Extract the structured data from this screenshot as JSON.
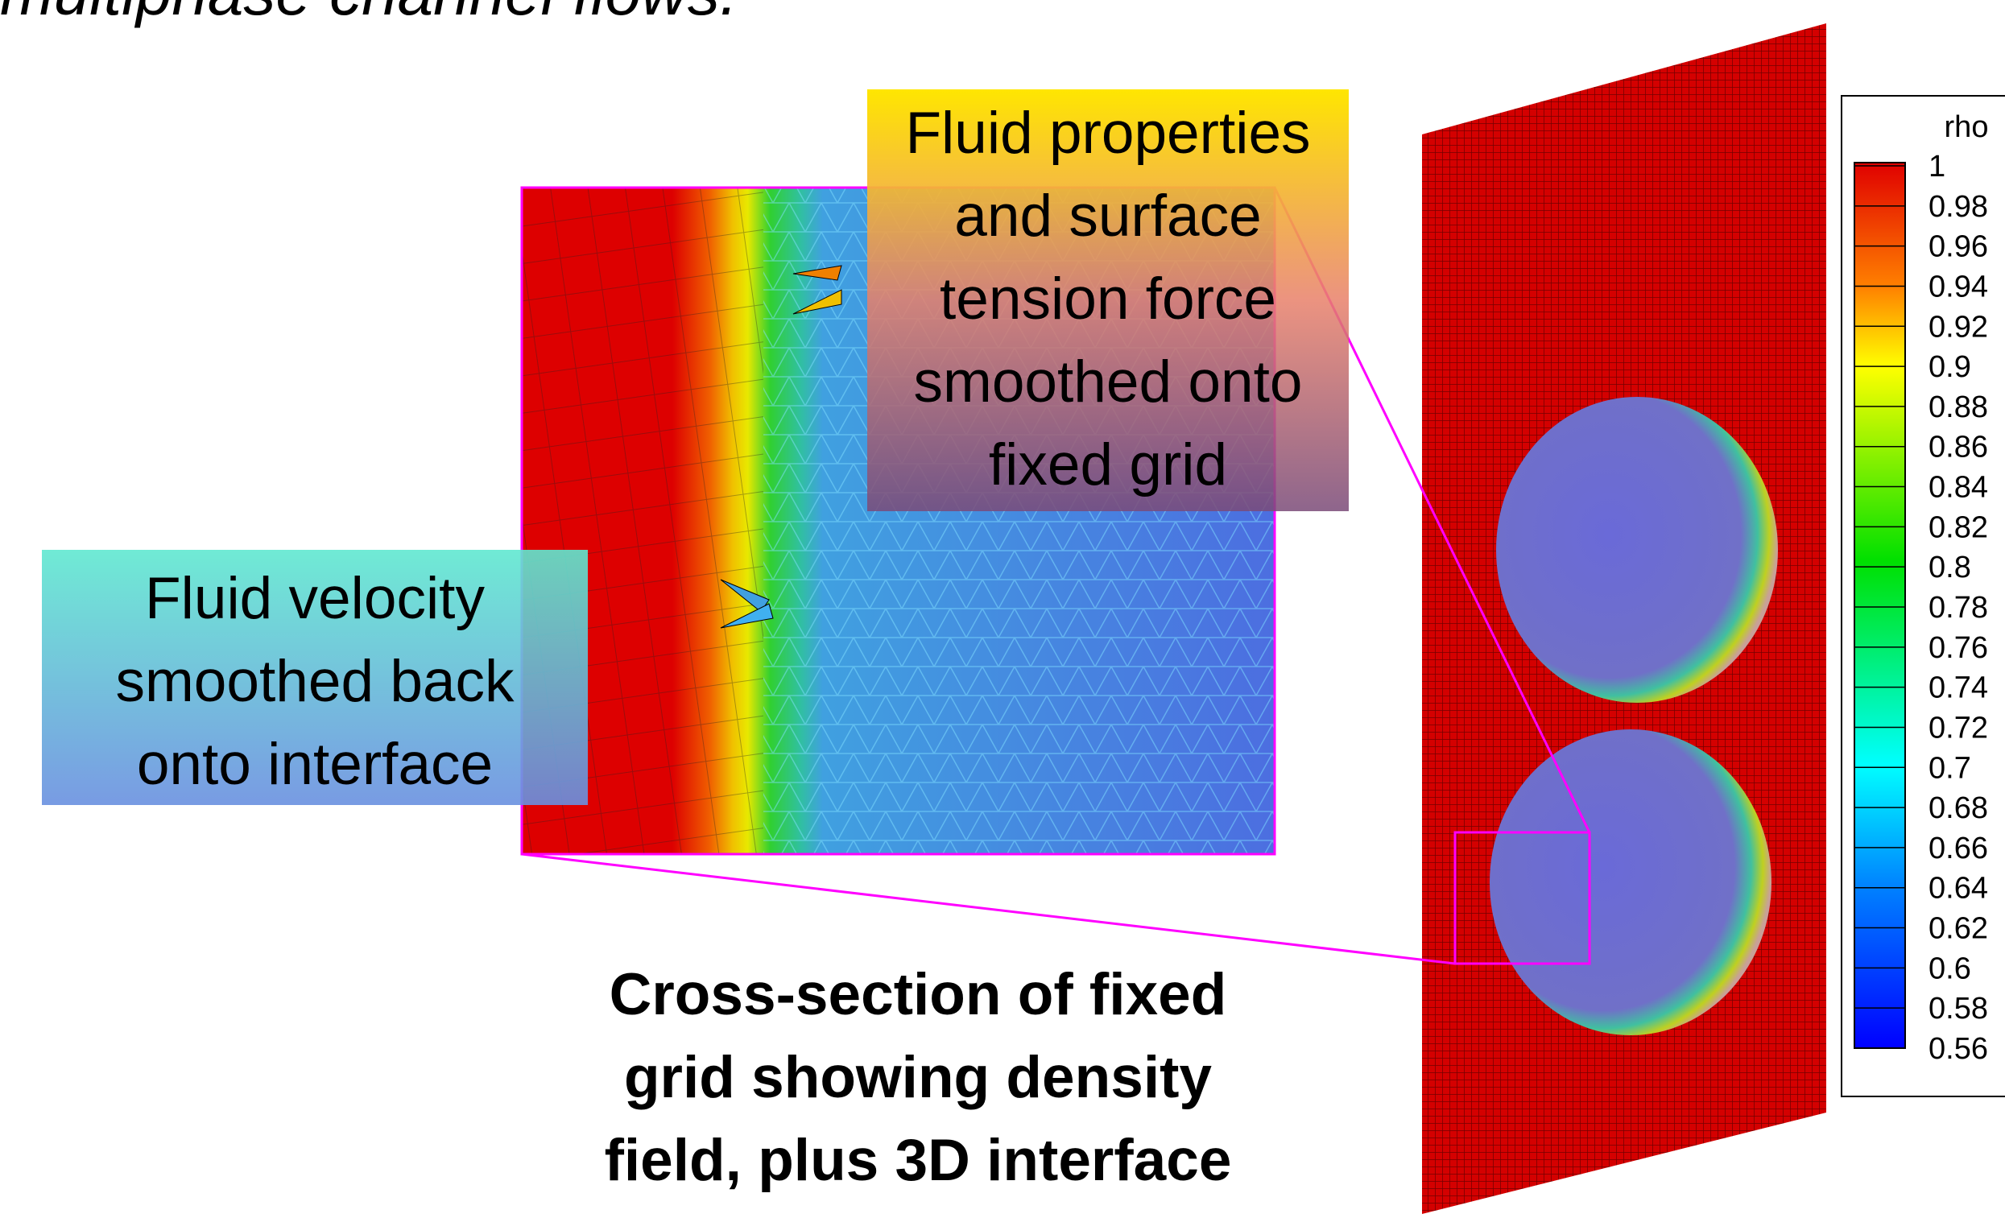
{
  "header": {
    "title": "multiphase channel flows."
  },
  "callouts": {
    "top": [
      "Fluid properties",
      "and surface",
      "tension force",
      "smoothed onto",
      "fixed grid"
    ],
    "left": [
      "Fluid velocity",
      "smoothed back",
      "onto interface"
    ]
  },
  "caption": [
    "Cross-section of fixed",
    "grid showing density",
    "field, plus 3D interface"
  ],
  "colorbar": {
    "title": "rho",
    "labels": [
      "1",
      "0.98",
      "0.96",
      "0.94",
      "0.92",
      "0.9",
      "0.88",
      "0.86",
      "0.84",
      "0.82",
      "0.8",
      "0.78",
      "0.76",
      "0.74",
      "0.72",
      "0.7",
      "0.68",
      "0.66",
      "0.64",
      "0.62",
      "0.6",
      "0.58",
      "0.56"
    ]
  }
}
